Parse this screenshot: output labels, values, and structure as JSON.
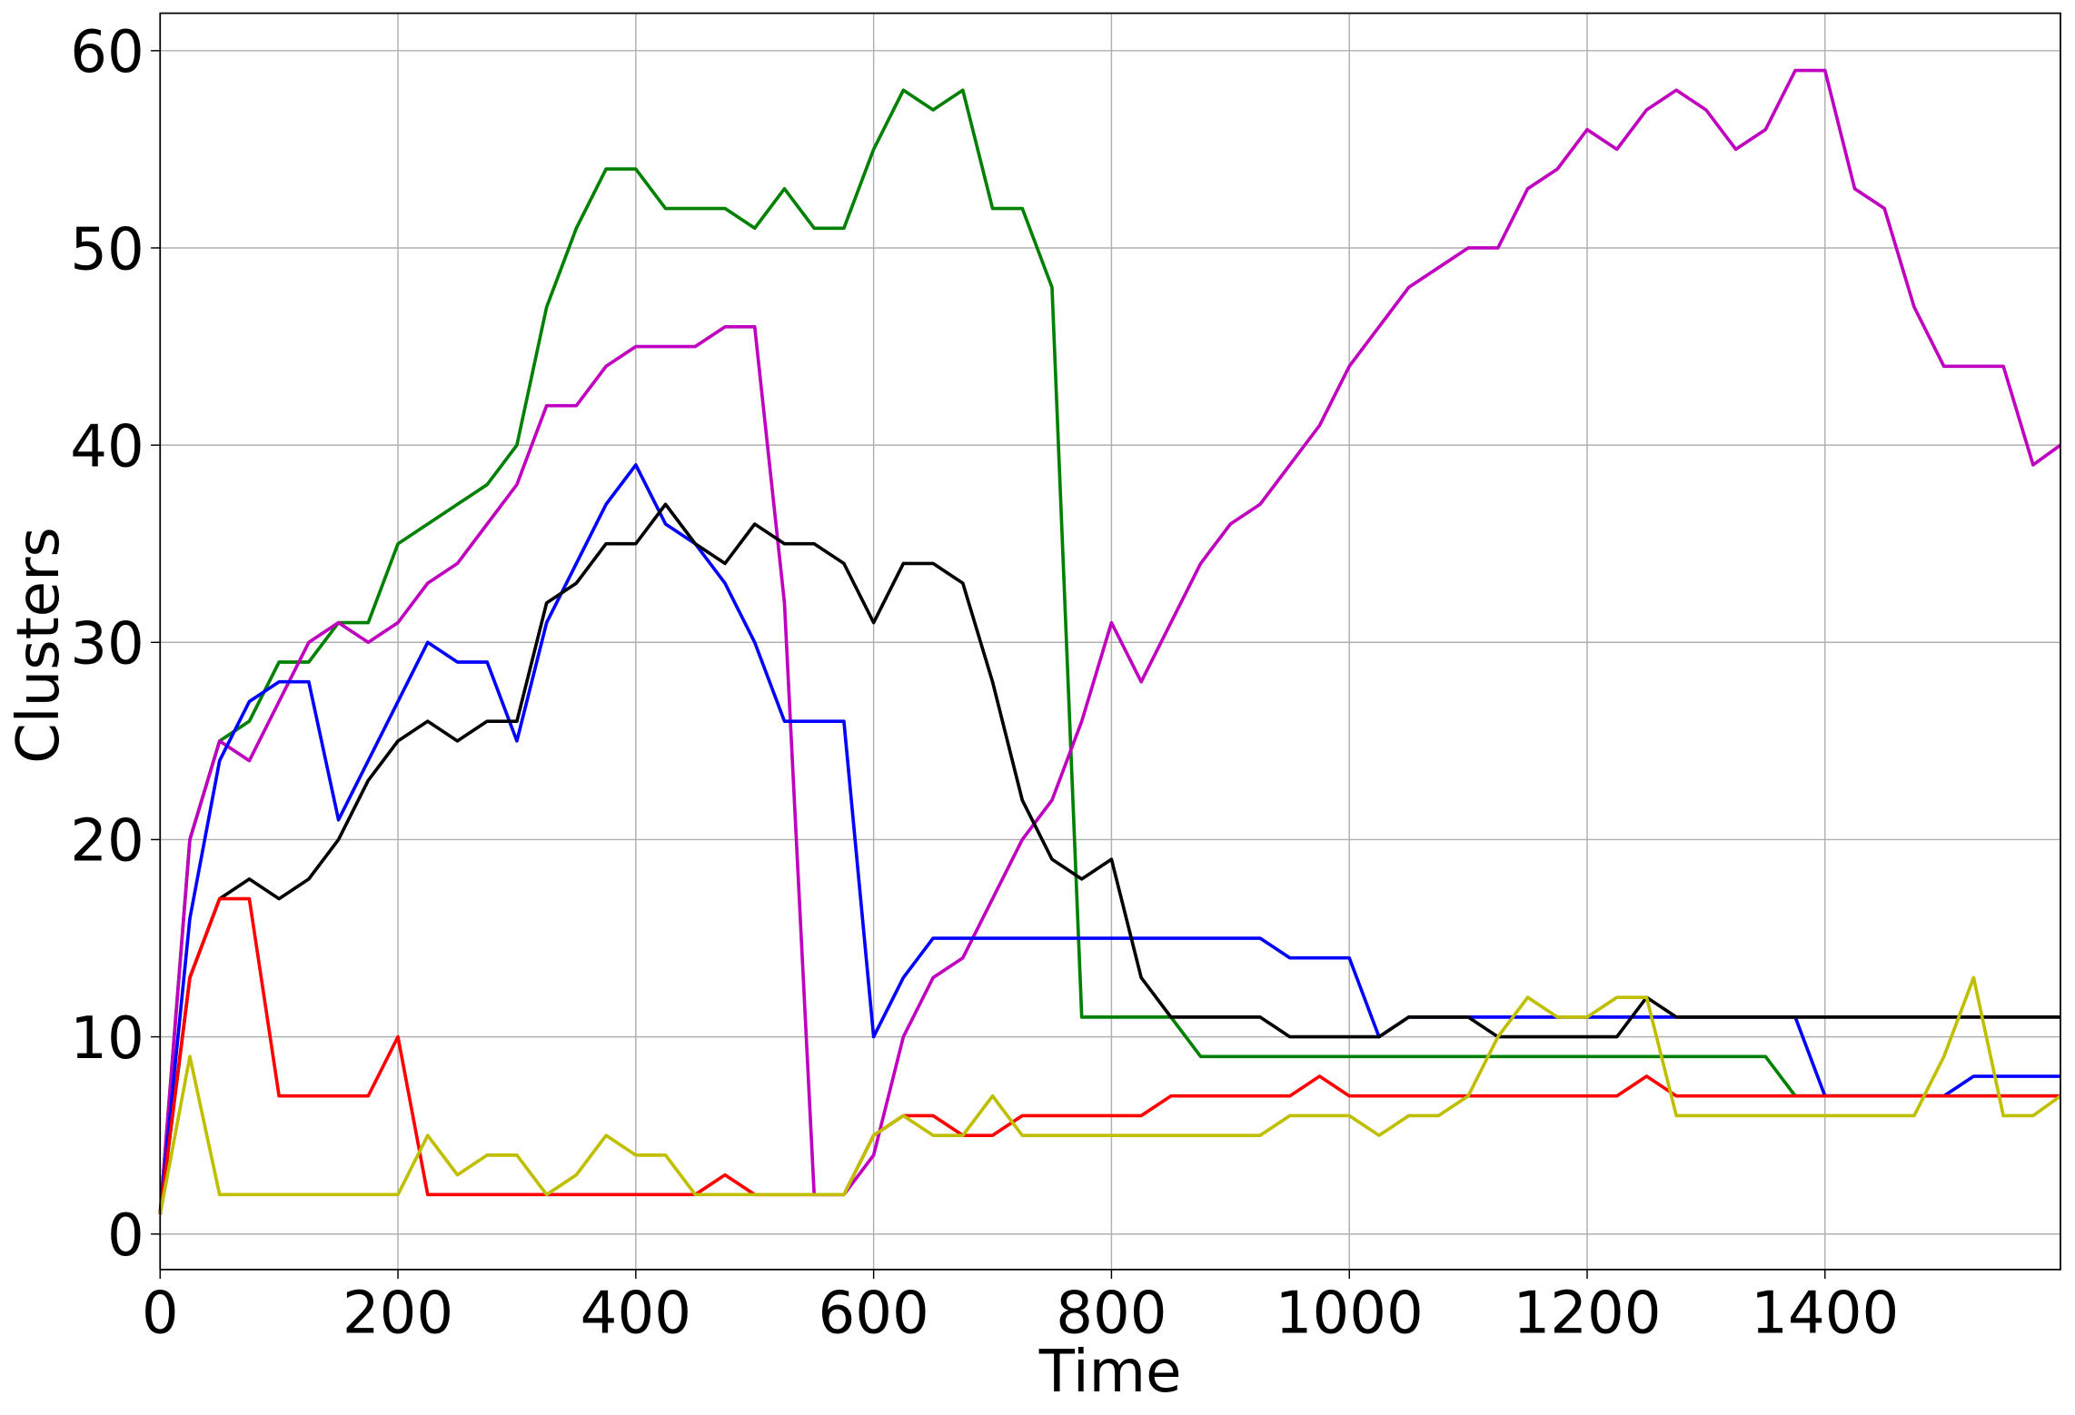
{
  "chart_data": {
    "type": "line",
    "xlabel": "Time",
    "ylabel": "Clusters",
    "x": [
      0,
      25,
      50,
      75,
      100,
      125,
      150,
      175,
      200,
      225,
      250,
      275,
      300,
      325,
      350,
      375,
      400,
      425,
      450,
      475,
      500,
      525,
      550,
      575,
      600,
      625,
      650,
      675,
      700,
      725,
      750,
      775,
      800,
      825,
      850,
      875,
      900,
      925,
      950,
      975,
      1000,
      1025,
      1050,
      1075,
      1100,
      1125,
      1150,
      1175,
      1200,
      1225,
      1250,
      1275,
      1300,
      1325,
      1350,
      1375,
      1400,
      1425,
      1450,
      1475,
      1500,
      1525,
      1550,
      1575,
      1598
    ],
    "series": [
      {
        "color": "#008000",
        "values": [
          1,
          20,
          25,
          26,
          29,
          29,
          31,
          31,
          35,
          36,
          37,
          38,
          40,
          47,
          51,
          54,
          54,
          52,
          52,
          52,
          51,
          53,
          51,
          51,
          55,
          58,
          57,
          58,
          52,
          52,
          48,
          11,
          11,
          11,
          11,
          9,
          9,
          9,
          9,
          9,
          9,
          9,
          9,
          9,
          9,
          9,
          9,
          9,
          9,
          9,
          9,
          9,
          9,
          9,
          9,
          7,
          7,
          7,
          7,
          7,
          7,
          7,
          7,
          7,
          7
        ]
      },
      {
        "color": "#bf00bf",
        "values": [
          1,
          20,
          25,
          24,
          27,
          30,
          31,
          30,
          31,
          33,
          34,
          36,
          38,
          42,
          42,
          44,
          45,
          45,
          45,
          46,
          46,
          32,
          2,
          2,
          4,
          10,
          13,
          14,
          17,
          20,
          22,
          26,
          31,
          28,
          31,
          34,
          36,
          37,
          39,
          41,
          44,
          46,
          48,
          49,
          50,
          50,
          53,
          54,
          56,
          55,
          57,
          58,
          57,
          55,
          56,
          59,
          59,
          53,
          52,
          47,
          44,
          44,
          44,
          39,
          40
        ]
      },
      {
        "color": "#0000ff",
        "values": [
          1,
          16,
          24,
          27,
          28,
          28,
          21,
          24,
          27,
          30,
          29,
          29,
          25,
          31,
          34,
          37,
          39,
          36,
          35,
          33,
          30,
          26,
          26,
          26,
          10,
          13,
          15,
          15,
          15,
          15,
          15,
          15,
          15,
          15,
          15,
          15,
          15,
          15,
          14,
          14,
          14,
          10,
          11,
          11,
          11,
          11,
          11,
          11,
          11,
          11,
          11,
          11,
          11,
          11,
          11,
          11,
          7,
          7,
          7,
          7,
          7,
          8,
          8,
          8,
          8
        ]
      },
      {
        "color": "#000000",
        "values": [
          1,
          13,
          17,
          18,
          17,
          18,
          20,
          23,
          25,
          26,
          25,
          26,
          26,
          32,
          33,
          35,
          35,
          37,
          35,
          34,
          36,
          35,
          35,
          34,
          31,
          34,
          34,
          33,
          28,
          22,
          19,
          18,
          19,
          13,
          11,
          11,
          11,
          11,
          10,
          10,
          10,
          10,
          11,
          11,
          11,
          10,
          10,
          10,
          10,
          10,
          12,
          11,
          11,
          11,
          11,
          11,
          11,
          11,
          11,
          11,
          11,
          11,
          11,
          11,
          11
        ]
      },
      {
        "color": "#ff0000",
        "values": [
          1,
          13,
          17,
          17,
          7,
          7,
          7,
          7,
          10,
          2,
          2,
          2,
          2,
          2,
          2,
          2,
          2,
          2,
          2,
          3,
          2,
          2,
          2,
          2,
          5,
          6,
          6,
          5,
          5,
          6,
          6,
          6,
          6,
          6,
          7,
          7,
          7,
          7,
          7,
          8,
          7,
          7,
          7,
          7,
          7,
          7,
          7,
          7,
          7,
          7,
          8,
          7,
          7,
          7,
          7,
          7,
          7,
          7,
          7,
          7,
          7,
          7,
          7,
          7,
          7
        ]
      },
      {
        "color": "#bfbf00",
        "values": [
          1,
          9,
          2,
          2,
          2,
          2,
          2,
          2,
          2,
          5,
          3,
          4,
          4,
          2,
          3,
          5,
          4,
          4,
          2,
          2,
          2,
          2,
          2,
          2,
          5,
          6,
          5,
          5,
          7,
          5,
          5,
          5,
          5,
          5,
          5,
          5,
          5,
          5,
          6,
          6,
          6,
          5,
          6,
          6,
          7,
          10,
          12,
          11,
          11,
          12,
          12,
          6,
          6,
          6,
          6,
          6,
          6,
          6,
          6,
          6,
          9,
          13,
          6,
          6,
          7
        ]
      }
    ],
    "xlim": [
      0,
      1598
    ],
    "ylim": [
      -1.8,
      61.9
    ],
    "xticks": [
      0,
      200,
      400,
      600,
      800,
      1000,
      1200,
      1400
    ],
    "yticks": [
      0,
      10,
      20,
      30,
      40,
      50,
      60
    ],
    "grid": true
  }
}
